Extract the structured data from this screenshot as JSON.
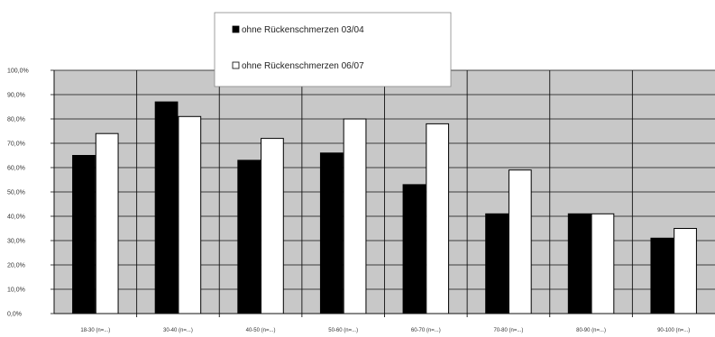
{
  "chart_data": {
    "type": "bar",
    "title": "",
    "xlabel": "",
    "ylabel": "",
    "ylim": [
      0,
      100
    ],
    "ytick_values": [
      0,
      10,
      20,
      30,
      40,
      50,
      60,
      70,
      80,
      90,
      100
    ],
    "ytick_labels": [
      "0,0%",
      "10,0%",
      "20,0%",
      "30,0%",
      "40,0%",
      "50,0%",
      "60,0%",
      "70,0%",
      "80,0%",
      "90,0%",
      "100,0%"
    ],
    "categories": [
      "18-30 (n=...)",
      "30-40 (n=...)",
      "40-50 (n=...)",
      "50-60 (n=...)",
      "60-70 (n=...)",
      "70-80 (n=...)",
      "80-90 (n=...)",
      "90-100 (n=...)"
    ],
    "series": [
      {
        "name": "ohne Rückenschmerzen 03/04",
        "color": "#000000",
        "values": [
          65,
          87,
          63,
          66,
          53,
          41,
          41,
          31
        ]
      },
      {
        "name": "ohne Rückenschmerzen 06/07",
        "color": "#ffffff",
        "values": [
          74,
          81,
          72,
          80,
          78,
          59,
          41,
          35
        ]
      }
    ],
    "grid": true,
    "legend_position": "top-center",
    "colors": {
      "plot_background": "#c8c8c8",
      "gridline": "#111111",
      "bar_outline": "#000000"
    }
  }
}
